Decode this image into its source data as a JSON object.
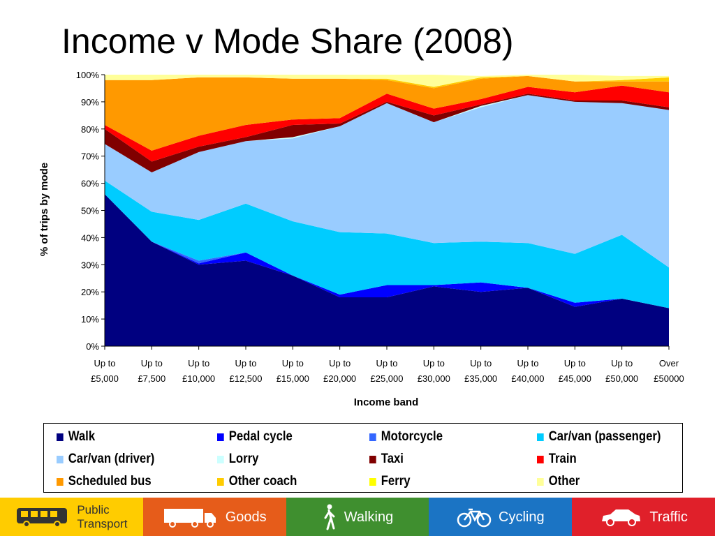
{
  "title": "Income v Mode Share (2008)",
  "chart_data": {
    "type": "area",
    "stacked": true,
    "title": "Income v Mode Share (2008)",
    "xlabel": "Income band",
    "ylabel": "% of trips by mode",
    "ylim": [
      0,
      100
    ],
    "yticks": [
      "0%",
      "10%",
      "20%",
      "30%",
      "40%",
      "50%",
      "60%",
      "70%",
      "80%",
      "90%",
      "100%"
    ],
    "categories": [
      [
        "Up to",
        "£5,000"
      ],
      [
        "Up to",
        "£7,500"
      ],
      [
        "Up to",
        "£10,000"
      ],
      [
        "Up to",
        "£12,500"
      ],
      [
        "Up to",
        "£15,000"
      ],
      [
        "Up to",
        "£20,000"
      ],
      [
        "Up to",
        "£25,000"
      ],
      [
        "Up to",
        "£30,000"
      ],
      [
        "Up to",
        "£35,000"
      ],
      [
        "Up to",
        "£40,000"
      ],
      [
        "Up to",
        "£45,000"
      ],
      [
        "Up to",
        "£50,000"
      ],
      [
        "Over",
        "£50000"
      ]
    ],
    "legend_position": "bottom",
    "series": [
      {
        "name": "Walk",
        "color": "#000080",
        "values": [
          56,
          38.5,
          30,
          31.5,
          26,
          18,
          18,
          22,
          20,
          21.5,
          14.5,
          17.5,
          14
        ]
      },
      {
        "name": "Pedal cycle",
        "color": "#0000ff",
        "values": [
          0,
          0,
          0.5,
          3,
          0,
          1,
          4.5,
          0.5,
          3.5,
          0,
          1.5,
          0,
          0
        ]
      },
      {
        "name": "Motorcycle",
        "color": "#3366ff",
        "values": [
          0,
          0,
          1,
          0,
          0,
          0,
          0,
          0,
          0,
          0,
          0,
          0,
          0
        ]
      },
      {
        "name": "Car/van (passenger)",
        "color": "#00ccff",
        "values": [
          5,
          11,
          15,
          18,
          20,
          23,
          19,
          15.5,
          15,
          16.5,
          18,
          23.5,
          15
        ]
      },
      {
        "name": "Car/van (driver)",
        "color": "#99ccff",
        "values": [
          13.5,
          14.5,
          25,
          23,
          30.5,
          39,
          48,
          44.5,
          49.5,
          54.5,
          56,
          48.5,
          58
        ]
      },
      {
        "name": "Lorry",
        "color": "#ccffff",
        "values": [
          0,
          0,
          0,
          0,
          0.5,
          0,
          0,
          0,
          0.5,
          0,
          0,
          0,
          0
        ]
      },
      {
        "name": "Taxi",
        "color": "#800000",
        "values": [
          5.5,
          4,
          2,
          1.5,
          4.5,
          1,
          0.5,
          2.5,
          0.5,
          0.5,
          0.5,
          1,
          1
        ]
      },
      {
        "name": "Train",
        "color": "#ff0000",
        "values": [
          1.5,
          4,
          4,
          4.5,
          2,
          2,
          3,
          2.5,
          2,
          2.5,
          3,
          5.5,
          5.5
        ]
      },
      {
        "name": "Scheduled bus",
        "color": "#ff9900",
        "values": [
          16.5,
          26,
          21.5,
          17.5,
          15,
          14.5,
          5,
          7.5,
          7.5,
          4,
          4,
          1.5,
          4
        ]
      },
      {
        "name": "Other coach",
        "color": "#ffcc00",
        "values": [
          0,
          0,
          0,
          0,
          0,
          0,
          0.5,
          0.5,
          0.5,
          0,
          0,
          0.5,
          1.5
        ]
      },
      {
        "name": "Ferry",
        "color": "#ffff00",
        "values": [
          0,
          0,
          0,
          0,
          0,
          0,
          0,
          0,
          0,
          0,
          0,
          0,
          0
        ]
      },
      {
        "name": "Other",
        "color": "#ffff99",
        "values": [
          2,
          2,
          1,
          1,
          1.5,
          1.5,
          1.5,
          4.5,
          0.5,
          0.5,
          2.5,
          1.5,
          0.5
        ]
      }
    ]
  },
  "footer": [
    {
      "label": [
        "Public",
        "Transport"
      ],
      "icon": "bus-icon",
      "color": "#ffcc00",
      "text_color": "#333333"
    },
    {
      "label": [
        "Goods"
      ],
      "icon": "lorry-icon",
      "color": "#e65c1a",
      "text_color": "#ffffff"
    },
    {
      "label": [
        "Walking"
      ],
      "icon": "walking-person-icon",
      "color": "#3f8f2f",
      "text_color": "#ffffff"
    },
    {
      "label": [
        "Cycling"
      ],
      "icon": "bicycle-icon",
      "color": "#1b74c4",
      "text_color": "#ffffff"
    },
    {
      "label": [
        "Traffic"
      ],
      "icon": "car-icon",
      "color": "#e0202a",
      "text_color": "#ffffff"
    }
  ]
}
